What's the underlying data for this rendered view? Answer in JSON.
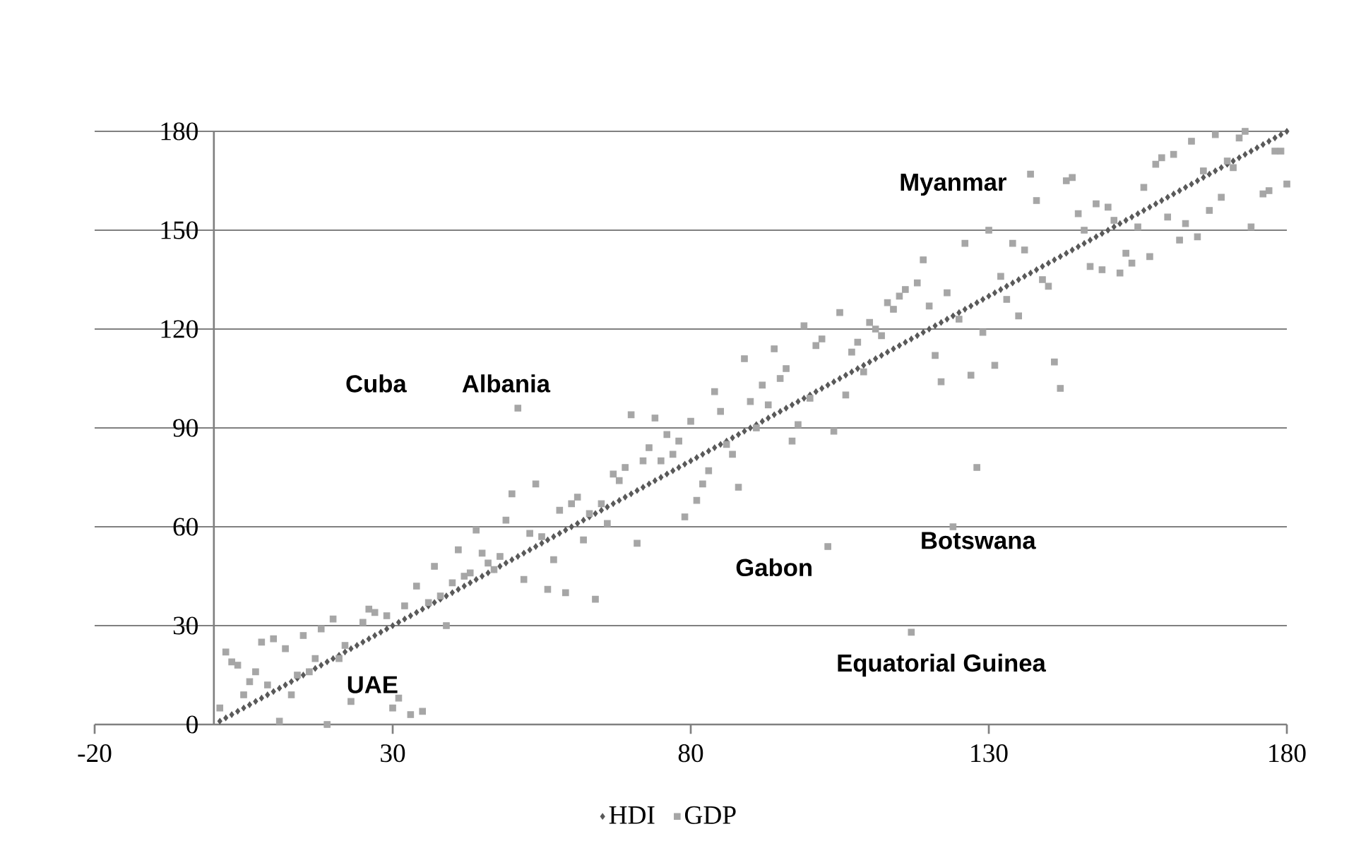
{
  "chart_data": {
    "type": "scatter",
    "xlim": [
      -20,
      180
    ],
    "xticks": [
      -20,
      30,
      80,
      130,
      180
    ],
    "ylim": [
      0,
      180
    ],
    "yticks": [
      0,
      30,
      60,
      90,
      120,
      150,
      180
    ],
    "grid": "y",
    "legend": "bottom",
    "annotations": [
      "Myanmar",
      "Cuba",
      "Albania",
      "Gabon",
      "Botswana",
      "Equatorial Guinea",
      "UAE"
    ],
    "series": [
      {
        "name": "HDI",
        "color": "#595959",
        "marker": "diamond",
        "x": [
          1,
          2,
          3,
          4,
          5,
          6,
          7,
          8,
          9,
          10,
          11,
          12,
          13,
          14,
          15,
          16,
          17,
          18,
          19,
          20,
          21,
          22,
          23,
          24,
          25,
          26,
          27,
          28,
          29,
          30,
          31,
          32,
          33,
          34,
          35,
          36,
          37,
          38,
          39,
          40,
          41,
          42,
          43,
          44,
          45,
          46,
          47,
          48,
          49,
          50,
          51,
          52,
          53,
          54,
          55,
          56,
          57,
          58,
          59,
          60,
          61,
          62,
          63,
          64,
          65,
          66,
          67,
          68,
          69,
          70,
          71,
          72,
          73,
          74,
          75,
          76,
          77,
          78,
          79,
          80,
          81,
          82,
          83,
          84,
          85,
          86,
          87,
          88,
          89,
          90,
          91,
          92,
          93,
          94,
          95,
          96,
          97,
          98,
          99,
          100,
          101,
          102,
          103,
          104,
          105,
          106,
          107,
          108,
          109,
          110,
          111,
          112,
          113,
          114,
          115,
          116,
          117,
          118,
          119,
          120,
          121,
          122,
          123,
          124,
          125,
          126,
          127,
          128,
          129,
          130,
          131,
          132,
          133,
          134,
          135,
          136,
          137,
          138,
          139,
          140,
          141,
          142,
          143,
          144,
          145,
          146,
          147,
          148,
          149,
          150,
          151,
          152,
          153,
          154,
          155,
          156,
          157,
          158,
          159,
          160,
          161,
          162,
          163,
          164,
          165,
          166,
          167,
          168,
          169,
          170,
          171,
          172,
          173,
          174,
          175,
          176,
          177,
          178,
          179,
          180
        ],
        "values": [
          1,
          2,
          3,
          4,
          5,
          6,
          7,
          8,
          9,
          10,
          11,
          12,
          13,
          14,
          15,
          16,
          17,
          18,
          19,
          20,
          21,
          22,
          23,
          24,
          25,
          26,
          27,
          28,
          29,
          30,
          31,
          32,
          33,
          34,
          35,
          36,
          37,
          38,
          39,
          40,
          41,
          42,
          43,
          44,
          45,
          46,
          47,
          48,
          49,
          50,
          51,
          52,
          53,
          54,
          55,
          56,
          57,
          58,
          59,
          60,
          61,
          62,
          63,
          64,
          65,
          66,
          67,
          68,
          69,
          70,
          71,
          72,
          73,
          74,
          75,
          76,
          77,
          78,
          79,
          80,
          81,
          82,
          83,
          84,
          85,
          86,
          87,
          88,
          89,
          90,
          91,
          92,
          93,
          94,
          95,
          96,
          97,
          98,
          99,
          100,
          101,
          102,
          103,
          104,
          105,
          106,
          107,
          108,
          109,
          110,
          111,
          112,
          113,
          114,
          115,
          116,
          117,
          118,
          119,
          120,
          121,
          122,
          123,
          124,
          125,
          126,
          127,
          128,
          129,
          130,
          131,
          132,
          133,
          134,
          135,
          136,
          137,
          138,
          139,
          140,
          141,
          142,
          143,
          144,
          145,
          146,
          147,
          148,
          149,
          150,
          151,
          152,
          153,
          154,
          155,
          156,
          157,
          158,
          159,
          160,
          161,
          162,
          163,
          164,
          165,
          166,
          167,
          168,
          169,
          170,
          171,
          172,
          173,
          174,
          175,
          176,
          177,
          178,
          179,
          180
        ]
      },
      {
        "name": "GDP",
        "color": "#a6a6a6",
        "marker": "square",
        "x": [
          1,
          2,
          3,
          4,
          5,
          6,
          7,
          8,
          9,
          10,
          11,
          12,
          13,
          14,
          15,
          16,
          17,
          18,
          19,
          20,
          21,
          22,
          23,
          25,
          26,
          27,
          29,
          30,
          31,
          32,
          33,
          34,
          35,
          36,
          37,
          38,
          39,
          40,
          41,
          42,
          43,
          44,
          45,
          46,
          47,
          48,
          49,
          50,
          51,
          52,
          53,
          54,
          55,
          56,
          57,
          58,
          59,
          60,
          61,
          62,
          63,
          64,
          65,
          66,
          67,
          68,
          69,
          70,
          71,
          72,
          73,
          74,
          75,
          76,
          77,
          78,
          79,
          80,
          81,
          82,
          83,
          84,
          85,
          86,
          87,
          88,
          89,
          90,
          91,
          92,
          93,
          94,
          95,
          96,
          97,
          98,
          99,
          100,
          101,
          102,
          103,
          104,
          105,
          106,
          107,
          108,
          109,
          110,
          111,
          112,
          113,
          114,
          115,
          116,
          117,
          118,
          119,
          120,
          121,
          122,
          123,
          124,
          125,
          126,
          127,
          128,
          129,
          130,
          131,
          132,
          133,
          134,
          135,
          136,
          137,
          138,
          139,
          140,
          141,
          142,
          143,
          144,
          145,
          146,
          147,
          148,
          149,
          150,
          151,
          152,
          153,
          154,
          155,
          156,
          157,
          158,
          159,
          160,
          161,
          162,
          163,
          164,
          165,
          166,
          167,
          168,
          169,
          170,
          171,
          172,
          173,
          174,
          176,
          177,
          178,
          179,
          180
        ],
        "values": [
          5,
          22,
          19,
          18,
          9,
          13,
          16,
          25,
          12,
          26,
          1,
          23,
          9,
          15,
          27,
          16,
          20,
          29,
          0,
          32,
          20,
          24,
          7,
          31,
          35,
          34,
          33,
          5,
          8,
          36,
          3,
          42,
          4,
          37,
          48,
          39,
          30,
          43,
          53,
          45,
          46,
          59,
          52,
          49,
          47,
          51,
          62,
          70,
          96,
          44,
          58,
          73,
          57,
          41,
          50,
          65,
          40,
          67,
          69,
          56,
          64,
          38,
          67,
          61,
          76,
          74,
          78,
          94,
          55,
          80,
          84,
          93,
          80,
          88,
          82,
          86,
          63,
          92,
          68,
          73,
          77,
          101,
          95,
          85,
          82,
          72,
          111,
          98,
          90,
          103,
          97,
          114,
          105,
          108,
          86,
          91,
          121,
          99,
          115,
          117,
          54,
          89,
          125,
          100,
          113,
          116,
          107,
          122,
          120,
          118,
          128,
          126,
          130,
          132,
          28,
          134,
          141,
          127,
          112,
          104,
          131,
          60,
          123,
          146,
          106,
          78,
          119,
          150,
          109,
          136,
          129,
          146,
          124,
          144,
          167,
          159,
          135,
          133,
          110,
          102,
          165,
          166,
          155,
          150,
          139,
          158,
          138,
          157,
          153,
          137,
          143,
          140,
          151,
          163,
          142,
          170,
          172,
          154,
          173,
          147,
          152,
          177,
          148,
          168,
          156,
          179,
          160,
          171,
          169,
          178,
          180,
          151,
          161,
          162,
          174,
          174,
          164
        ]
      }
    ]
  }
}
